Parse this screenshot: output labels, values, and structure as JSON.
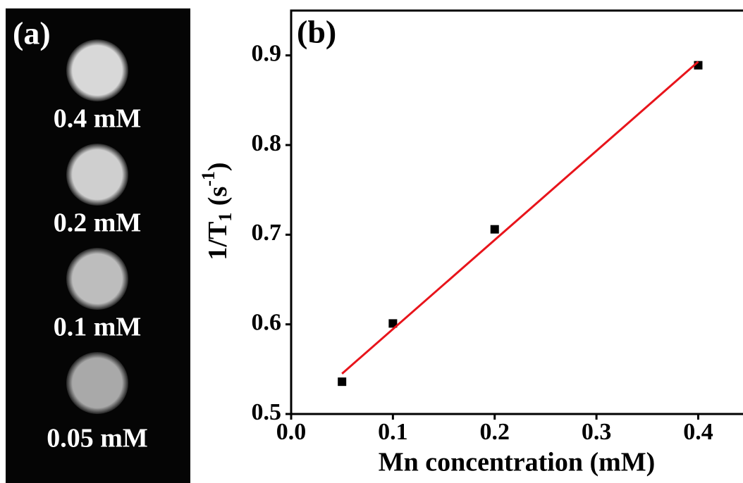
{
  "panel_a": {
    "label": "(a)",
    "samples": [
      "0.4 mM",
      "0.2 mM",
      "0.1 mM",
      "0.05 mM"
    ]
  },
  "chart_data": {
    "type": "scatter",
    "panel_label": "(b)",
    "xlabel": "Mn concentration (mM)",
    "ylabel_parts": [
      "1/T",
      "1",
      " (s",
      "-1",
      ")"
    ],
    "x": [
      0.05,
      0.1,
      0.2,
      0.4
    ],
    "series": [
      {
        "type": "scatter",
        "color": "#000000",
        "values": [
          0.536,
          0.601,
          0.706,
          0.889
        ]
      },
      {
        "type": "line",
        "color": "#e8141b",
        "x": [
          0.05,
          0.4
        ],
        "values": [
          0.545,
          0.893
        ]
      }
    ],
    "xlim": [
      0,
      0.444
    ],
    "ylim": [
      0.5,
      0.95
    ],
    "xticks": [
      {
        "value": 0,
        "label": "0.0"
      },
      0.1,
      0.2,
      0.3,
      0.4
    ],
    "yticks": [
      0.5,
      0.6,
      0.7,
      0.8,
      0.9
    ]
  }
}
